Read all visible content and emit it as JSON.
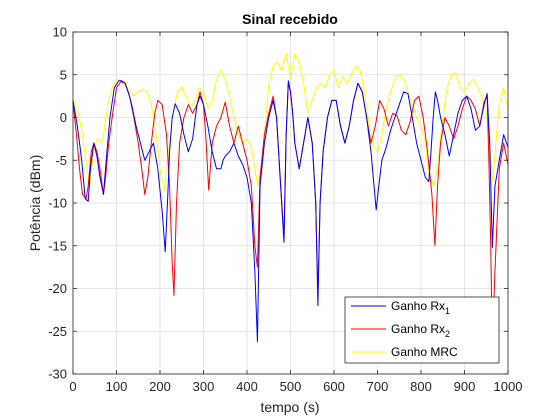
{
  "chart_data": {
    "type": "line",
    "title": "Sinal recebido",
    "xlabel": "tempo (s)",
    "ylabel": "Potência (dBm)",
    "xlim": [
      0,
      1000
    ],
    "ylim": [
      -30,
      10
    ],
    "xticks": [
      0,
      100,
      200,
      300,
      400,
      500,
      600,
      700,
      800,
      900,
      1000
    ],
    "yticks": [
      -30,
      -25,
      -20,
      -15,
      -10,
      -5,
      0,
      5,
      10
    ],
    "grid": true,
    "legend_position": "bottom-right",
    "series": [
      {
        "name_main": "Ganho Rx",
        "name_sub": "1",
        "color": "#0000ff",
        "x": [
          0,
          10,
          20,
          28,
          35,
          40,
          48,
          55,
          62,
          70,
          78,
          85,
          95,
          105,
          112,
          120,
          128,
          135,
          145,
          155,
          165,
          175,
          185,
          195,
          205,
          212,
          218,
          222,
          228,
          235,
          245,
          255,
          265,
          275,
          285,
          292,
          300,
          310,
          320,
          330,
          340,
          345,
          350,
          360,
          370,
          380,
          390,
          400,
          410,
          418,
          424,
          430,
          440,
          450,
          460,
          468,
          475,
          485,
          490,
          495,
          500,
          505,
          510,
          520,
          530,
          540,
          550,
          558,
          563,
          568,
          575,
          585,
          595,
          605,
          615,
          625,
          635,
          645,
          655,
          665,
          675,
          685,
          692,
          697,
          703,
          710,
          720,
          730,
          740,
          750,
          760,
          770,
          780,
          790,
          800,
          810,
          818,
          823,
          828,
          833,
          838,
          845,
          855,
          865,
          875,
          885,
          895,
          905,
          915,
          925,
          935,
          945,
          952,
          958,
          964,
          970,
          980,
          990,
          1000
        ],
        "values": [
          2,
          -1,
          -5,
          -9.5,
          -9.8,
          -6,
          -3,
          -4.5,
          -7,
          -9,
          -4,
          0,
          3.5,
          4.3,
          4.3,
          4,
          2.8,
          1.5,
          -1,
          -3,
          -5,
          -4,
          -3,
          -6,
          -11,
          -15.7,
          -9,
          -4,
          0,
          1.6,
          0.5,
          -2,
          -4,
          -2.5,
          1.5,
          2.5,
          1.5,
          -1,
          -4,
          -6,
          -6,
          -5,
          -4.5,
          -4,
          -3,
          -4.5,
          -5.5,
          -7,
          -10,
          -18,
          -26.2,
          -8,
          -3,
          0,
          2,
          0,
          -6,
          -14.6,
          -2,
          4.3,
          3,
          0.5,
          -3,
          -6,
          -3,
          0,
          -3,
          -10,
          -22,
          -10,
          -4,
          0,
          2,
          2,
          -1,
          -3,
          -1,
          2,
          4,
          3,
          0,
          -4,
          -8,
          -10.8,
          -8,
          -5,
          -3.5,
          -1.5,
          0,
          1.5,
          3,
          2.8,
          0,
          -3,
          -5,
          -7,
          -7.5,
          -4,
          0,
          3,
          2,
          0,
          -2,
          -4.5,
          -2,
          0.5,
          2,
          2.5,
          1,
          -1.5,
          -1,
          1.5,
          2.8,
          -3,
          -15.2,
          -8,
          -5,
          -2,
          -3.5
        ]
      },
      {
        "name_main": "Ganho Rx",
        "name_sub": "2",
        "color": "#ff0000",
        "x": [
          0,
          8,
          15,
          22,
          30,
          35,
          42,
          48,
          55,
          62,
          70,
          75,
          82,
          90,
          100,
          110,
          120,
          130,
          140,
          150,
          158,
          165,
          172,
          180,
          188,
          195,
          205,
          215,
          222,
          228,
          232,
          238,
          245,
          255,
          265,
          275,
          285,
          292,
          300,
          305,
          312,
          320,
          330,
          340,
          350,
          360,
          370,
          380,
          390,
          400,
          410,
          418,
          424,
          430,
          440,
          450,
          460,
          468,
          475,
          485,
          490,
          495,
          500,
          505,
          510,
          520,
          530,
          540,
          550,
          558,
          563,
          568,
          575,
          585,
          595,
          605,
          615,
          625,
          635,
          645,
          655,
          665,
          675,
          685,
          695,
          705,
          715,
          725,
          735,
          745,
          755,
          765,
          775,
          785,
          795,
          805,
          815,
          825,
          832,
          838,
          845,
          855,
          865,
          875,
          885,
          895,
          905,
          915,
          925,
          935,
          945,
          952,
          956,
          960,
          964,
          970,
          980,
          990,
          1000
        ],
        "values": [
          1.8,
          -2,
          -6,
          -9,
          -9.5,
          -8,
          -4,
          -3,
          -4,
          -6,
          -9,
          -7,
          -3,
          0,
          3.5,
          4.2,
          4,
          2.5,
          0,
          -3,
          -6,
          -9,
          -7,
          -3,
          0.5,
          2,
          1.5,
          -2,
          -8,
          -17,
          -20.8,
          -10,
          -3,
          0,
          1.5,
          0.5,
          1.5,
          3,
          1.5,
          -2,
          -8.5,
          -3,
          -1,
          0,
          1.8,
          -1,
          -3,
          -1,
          -3,
          -5,
          -8,
          -15,
          -17.5,
          -7,
          -2,
          0.5,
          2.5,
          0,
          -6,
          -14,
          -2,
          4,
          3,
          0.5,
          -3,
          -6,
          -3,
          0,
          -3,
          -10,
          -21,
          -10,
          -4,
          0,
          2,
          2,
          -1,
          -3,
          -1,
          2,
          4,
          3,
          0,
          -3,
          -1,
          2,
          1,
          -1,
          0.5,
          0.2,
          -1.5,
          -2,
          -0.5,
          2,
          2.5,
          0,
          -4,
          -9,
          -15,
          -8,
          -3,
          0,
          -1,
          -2.5,
          -1,
          1,
          2.5,
          2,
          1,
          -1,
          1.8,
          2.5,
          -5,
          -14,
          -26.8,
          -18,
          -6,
          -3,
          -5.5
        ]
      },
      {
        "name_main": "Ganho MRC",
        "name_sub": "",
        "color": "#ffff00",
        "x": [
          0,
          10,
          20,
          30,
          38,
          45,
          52,
          58,
          65,
          72,
          80,
          90,
          100,
          110,
          120,
          130,
          140,
          150,
          160,
          170,
          180,
          190,
          200,
          210,
          220,
          230,
          240,
          250,
          260,
          270,
          280,
          290,
          300,
          310,
          320,
          330,
          340,
          350,
          360,
          370,
          380,
          390,
          400,
          410,
          418,
          425,
          432,
          440,
          450,
          460,
          470,
          480,
          490,
          500,
          510,
          520,
          530,
          540,
          550,
          560,
          570,
          580,
          590,
          600,
          610,
          620,
          630,
          640,
          650,
          660,
          670,
          680,
          690,
          700,
          710,
          720,
          730,
          740,
          750,
          760,
          770,
          780,
          790,
          800,
          810,
          820,
          830,
          840,
          850,
          860,
          870,
          880,
          890,
          900,
          910,
          920,
          930,
          940,
          950,
          958,
          965,
          972,
          980,
          990,
          1000
        ],
        "values": [
          2.2,
          1,
          -1.5,
          -5,
          -8,
          -5,
          -3,
          -2.5,
          -3,
          -1.5,
          1.5,
          3.5,
          4.5,
          4.3,
          3.7,
          3,
          2.5,
          3,
          3.3,
          3.1,
          1.5,
          -1.5,
          -6,
          -8.5,
          -4,
          0.5,
          3,
          3.6,
          2.5,
          1,
          2,
          3.5,
          3,
          1,
          2,
          4.5,
          5.5,
          4.5,
          2.5,
          0,
          -2,
          -3,
          -2.5,
          -3.5,
          -6,
          -8,
          -6,
          -2,
          3.8,
          6,
          6.5,
          5.5,
          7.5,
          4.5,
          7.4,
          6.5,
          4,
          0.5,
          2,
          3.5,
          4,
          3.5,
          5,
          5.5,
          3.5,
          4.8,
          4,
          5,
          6,
          5.5,
          3,
          -0.5,
          -3.5,
          -4,
          -2,
          1,
          3,
          4.5,
          5,
          4.5,
          3,
          1.5,
          0,
          -1,
          -3,
          -7,
          -8,
          -5,
          0,
          3.5,
          5,
          5.2,
          3.5,
          3,
          4,
          4.5,
          3.5,
          2.5,
          0.5,
          -3,
          -7.5,
          -3,
          1.5,
          3.5,
          1
        ]
      }
    ]
  }
}
